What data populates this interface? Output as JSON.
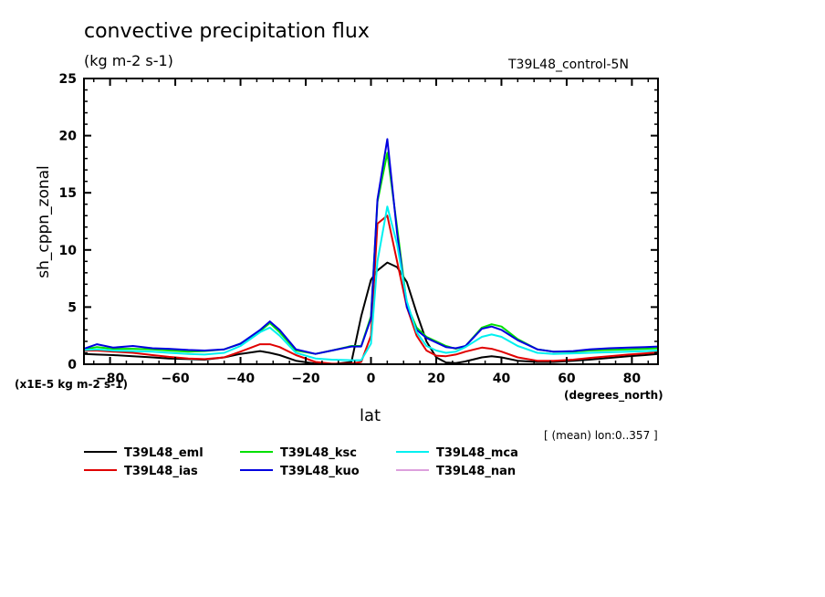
{
  "chart_data": {
    "type": "line",
    "title": "convective precipitation flux",
    "units": "(kg m-2 s-1)",
    "run_label": "T39L48_control-5N",
    "xlabel": "lat",
    "x_units": "(degrees_north)",
    "ylabel": "sh_cppn_zonal",
    "y_scale_note": "(x1E-5 kg m-2 s-1)",
    "footnote": "[ (mean) lon:0..357 ]",
    "xlim": [
      -88,
      88
    ],
    "ylim": [
      0,
      25
    ],
    "x_ticks": [
      -80,
      -60,
      -40,
      -20,
      0,
      20,
      40,
      60,
      80
    ],
    "x_tick_labels": [
      "-80",
      "-60",
      "-40",
      "-20",
      "0",
      "20",
      "40",
      "60",
      "80"
    ],
    "y_ticks": [
      0,
      5,
      10,
      15,
      20,
      25
    ],
    "y_tick_labels": [
      "0",
      "5",
      "10",
      "15",
      "20",
      "25"
    ],
    "grid": false,
    "legend_position": "bottom",
    "x": [
      -88,
      -84,
      -79,
      -73,
      -67,
      -62,
      -56,
      -51,
      -45,
      -40,
      -34,
      -31,
      -28,
      -23,
      -17,
      -12,
      -6,
      -3,
      0,
      2,
      5,
      8,
      11,
      14,
      17,
      20,
      23,
      26,
      29,
      34,
      37,
      40,
      45,
      51,
      56,
      62,
      67,
      73,
      79,
      84,
      88
    ],
    "series": [
      {
        "name": "T39L48_eml",
        "color": "#000000",
        "values": [
          0.9,
          0.85,
          0.8,
          0.7,
          0.6,
          0.5,
          0.45,
          0.4,
          0.6,
          0.9,
          1.15,
          1.0,
          0.8,
          0.3,
          0.05,
          0.0,
          0.2,
          4.2,
          7.4,
          8.2,
          8.9,
          8.5,
          7.2,
          4.5,
          2.0,
          0.6,
          0.15,
          0.1,
          0.25,
          0.6,
          0.7,
          0.6,
          0.3,
          0.2,
          0.2,
          0.3,
          0.4,
          0.55,
          0.7,
          0.8,
          0.9
        ]
      },
      {
        "name": "T39L48_ias",
        "color": "#e00000",
        "values": [
          1.2,
          1.2,
          1.1,
          1.0,
          0.8,
          0.65,
          0.5,
          0.45,
          0.6,
          1.1,
          1.75,
          1.75,
          1.5,
          0.8,
          0.2,
          0.05,
          0.05,
          0.2,
          2.5,
          12.3,
          13.0,
          9.0,
          5.0,
          2.5,
          1.2,
          0.75,
          0.7,
          0.85,
          1.1,
          1.45,
          1.35,
          1.1,
          0.6,
          0.3,
          0.3,
          0.4,
          0.55,
          0.7,
          0.85,
          0.95,
          1.05
        ]
      },
      {
        "name": "T39L48_ksc",
        "color": "#00e000",
        "values": [
          1.3,
          1.5,
          1.35,
          1.35,
          1.3,
          1.2,
          1.1,
          1.15,
          1.3,
          1.8,
          2.9,
          3.6,
          2.8,
          1.2,
          0.9,
          1.2,
          1.6,
          1.6,
          4.2,
          14.2,
          18.5,
          12.0,
          5.2,
          3.2,
          2.4,
          2.0,
          1.6,
          1.35,
          1.6,
          3.2,
          3.5,
          3.3,
          2.2,
          1.3,
          1.1,
          1.1,
          1.2,
          1.25,
          1.3,
          1.35,
          1.4
        ]
      },
      {
        "name": "T39L48_kuo",
        "color": "#0000e0",
        "values": [
          1.35,
          1.75,
          1.45,
          1.6,
          1.4,
          1.35,
          1.25,
          1.2,
          1.3,
          1.8,
          3.0,
          3.75,
          3.0,
          1.3,
          0.9,
          1.2,
          1.55,
          1.55,
          4.0,
          14.4,
          19.7,
          11.5,
          5.0,
          3.0,
          2.3,
          1.9,
          1.5,
          1.4,
          1.6,
          3.1,
          3.3,
          3.0,
          2.1,
          1.3,
          1.1,
          1.15,
          1.3,
          1.4,
          1.45,
          1.5,
          1.55
        ]
      },
      {
        "name": "T39L48_mca",
        "color": "#00f0f0",
        "values": [
          1.25,
          1.3,
          1.2,
          1.15,
          1.1,
          1.0,
          0.9,
          0.85,
          1.0,
          1.6,
          2.8,
          3.2,
          2.5,
          1.0,
          0.5,
          0.4,
          0.35,
          0.35,
          1.8,
          9.0,
          13.8,
          10.5,
          5.5,
          2.8,
          1.6,
          1.2,
          1.0,
          1.1,
          1.5,
          2.4,
          2.6,
          2.4,
          1.6,
          1.0,
          0.9,
          0.95,
          1.0,
          1.05,
          1.1,
          1.15,
          1.2
        ]
      },
      {
        "name": "T39L48_nan",
        "color": "#dda0dd",
        "values": [
          0,
          0,
          0,
          0,
          0,
          0,
          0,
          0,
          0,
          0,
          0,
          0,
          0,
          0,
          0,
          0,
          0,
          0,
          0,
          0,
          0,
          0,
          0,
          0,
          0,
          0,
          0,
          0,
          0,
          0,
          0,
          0,
          0,
          0,
          0,
          0,
          0,
          0,
          0,
          0,
          0
        ]
      }
    ]
  }
}
